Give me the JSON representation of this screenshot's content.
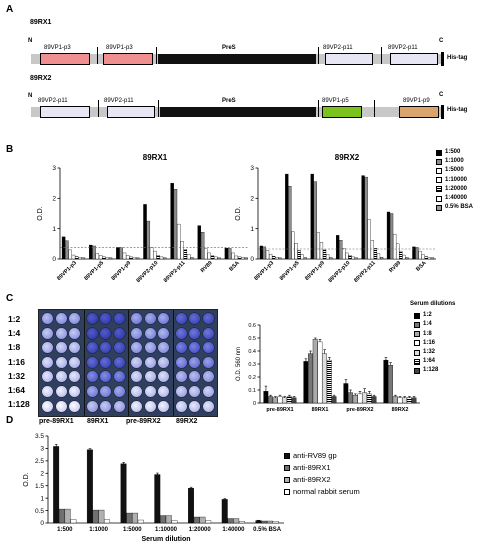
{
  "panelA": {
    "label": "A",
    "constructs": [
      {
        "name": "89RX1",
        "n": "N",
        "c": "C",
        "tag": "His-tag",
        "segments": [
          {
            "label": "89VP1-p3",
            "type": "box",
            "color": "#f08f8f"
          },
          {
            "label": "89VP1-p3",
            "type": "box",
            "color": "#f08f8f"
          },
          {
            "label": "PreS",
            "type": "bar",
            "color": "#111111"
          },
          {
            "label": "89VP2-p11",
            "type": "box",
            "color": "#e6e6f4"
          },
          {
            "label": "89VP2-p11",
            "type": "box",
            "color": "#e6e6f4"
          }
        ]
      },
      {
        "name": "89RX2",
        "n": "N",
        "c": "C",
        "tag": "His-tag",
        "segments": [
          {
            "label": "89VP2-p11",
            "type": "box",
            "color": "#e6e6f4"
          },
          {
            "label": "89VP2-p11",
            "type": "box",
            "color": "#e6e6f4"
          },
          {
            "label": "PreS",
            "type": "bar",
            "color": "#111111"
          },
          {
            "label": "89VP1-p5",
            "type": "box",
            "color": "#7cc21c"
          },
          {
            "label": "89VP1-p9",
            "type": "box",
            "color": "#d9a46d"
          }
        ]
      }
    ]
  },
  "panelB": {
    "label": "B",
    "legend": [
      {
        "label": "1:500",
        "color": "#000000",
        "pattern": "solid"
      },
      {
        "label": "1:1000",
        "color": "#8c8c8c",
        "pattern": "solid"
      },
      {
        "label": "1:5000",
        "color": "#ffffff",
        "pattern": "solid"
      },
      {
        "label": "1:10000",
        "color": "#ffffff",
        "pattern": "solid"
      },
      {
        "label": "1:20000",
        "color": "#000000",
        "pattern": "hstripe"
      },
      {
        "label": "1:40000",
        "color": "#ffffff",
        "pattern": "solid"
      },
      {
        "label": "0.5% BSA",
        "color": "#9a9a9a",
        "pattern": "solid"
      }
    ],
    "chart_data": [
      {
        "type": "bar",
        "title": "89RX1",
        "ylabel": "O.D.",
        "ylim": [
          0,
          3
        ],
        "yticks": [
          "0",
          "1",
          "2",
          "3"
        ],
        "categories": [
          "89VP1-p3",
          "89VP1-p5",
          "89VP1-p9",
          "89VP2-p10",
          "89VP2-p11",
          "RV89",
          "BSA"
        ],
        "series": [
          {
            "name": "1:500",
            "values": [
              0.73,
              0.46,
              0.38,
              1.8,
              2.5,
              1.1,
              0.36
            ]
          },
          {
            "name": "1:1000",
            "values": [
              0.6,
              0.43,
              0.37,
              1.25,
              2.3,
              0.88,
              0.35
            ]
          },
          {
            "name": "1:5000",
            "values": [
              0.3,
              0.18,
              0.2,
              0.38,
              1.15,
              0.34,
              0.2
            ]
          },
          {
            "name": "1:10000",
            "values": [
              0.13,
              0.12,
              0.12,
              0.26,
              0.58,
              0.2,
              0.1
            ]
          },
          {
            "name": "1:20000",
            "values": [
              0.08,
              0.07,
              0.07,
              0.12,
              0.32,
              0.11,
              0.07
            ]
          },
          {
            "name": "1:40000",
            "values": [
              0.05,
              0.04,
              0.04,
              0.07,
              0.15,
              0.07,
              0.05
            ]
          },
          {
            "name": "0.5% BSA",
            "values": [
              0.04,
              0.04,
              0.04,
              0.04,
              0.05,
              0.04,
              0.04
            ]
          }
        ],
        "threshold": 0.38
      },
      {
        "type": "bar",
        "title": "89RX2",
        "ylabel": "O.D.",
        "ylim": [
          0,
          3
        ],
        "yticks": [
          "0",
          "1",
          "2",
          "3"
        ],
        "categories": [
          "89VP1-p3",
          "89VP1-p5",
          "89VP1-p9",
          "89VP2-p10",
          "89VP2-p11",
          "RV89",
          "BSA"
        ],
        "series": [
          {
            "name": "1:500",
            "values": [
              0.43,
              2.8,
              2.8,
              0.78,
              2.75,
              1.55,
              0.4
            ]
          },
          {
            "name": "1:1000",
            "values": [
              0.4,
              2.4,
              2.55,
              0.62,
              2.7,
              1.5,
              0.38
            ]
          },
          {
            "name": "1:5000",
            "values": [
              0.28,
              0.9,
              0.87,
              0.35,
              1.3,
              0.82,
              0.26
            ]
          },
          {
            "name": "1:10000",
            "values": [
              0.16,
              0.52,
              0.55,
              0.2,
              0.62,
              0.5,
              0.14
            ]
          },
          {
            "name": "1:20000",
            "values": [
              0.09,
              0.28,
              0.3,
              0.12,
              0.35,
              0.26,
              0.08
            ]
          },
          {
            "name": "1:40000",
            "values": [
              0.06,
              0.14,
              0.15,
              0.07,
              0.18,
              0.13,
              0.05
            ]
          },
          {
            "name": "0.5% BSA",
            "values": [
              0.04,
              0.05,
              0.05,
              0.04,
              0.06,
              0.05,
              0.04
            ]
          }
        ],
        "threshold": 0.33
      }
    ]
  },
  "panelC": {
    "label": "C",
    "plate_rows": [
      "1:2",
      "1:4",
      "1:8",
      "1:16",
      "1:32",
      "1:64",
      "1:128"
    ],
    "plate_cols": [
      "pre-89RX1",
      "89RX1",
      "pre-89RX2",
      "89RX2"
    ],
    "plate_intensity": [
      [
        0.45,
        0.95,
        0.55,
        0.85
      ],
      [
        0.4,
        0.95,
        0.5,
        0.8
      ],
      [
        0.35,
        0.9,
        0.45,
        0.75
      ],
      [
        0.3,
        0.85,
        0.35,
        0.6
      ],
      [
        0.25,
        0.7,
        0.3,
        0.45
      ],
      [
        0.2,
        0.55,
        0.25,
        0.35
      ],
      [
        0.15,
        0.4,
        0.2,
        0.25
      ]
    ],
    "legend_title": "Serum dilutions",
    "legend": [
      {
        "label": "1:2",
        "color": "#000000",
        "pattern": "solid"
      },
      {
        "label": "1:4",
        "color": "#777777",
        "pattern": "solid"
      },
      {
        "label": "1:8",
        "color": "#aaaaaa",
        "pattern": "solid"
      },
      {
        "label": "1:16",
        "color": "#ffffff",
        "pattern": "solid"
      },
      {
        "label": "1:32",
        "color": "#dddddd",
        "pattern": "solid"
      },
      {
        "label": "1:64",
        "color": "#ffffff",
        "pattern": "hstripe"
      },
      {
        "label": "1:128",
        "color": "#444444",
        "pattern": "solid"
      }
    ],
    "chart_data": {
      "type": "bar",
      "ylabel": "O.D. 560 nm",
      "ylim": [
        0,
        0.6
      ],
      "yticks": [
        "0",
        "0.1",
        "0.2",
        "0.3",
        "0.4",
        "0.5",
        "0.6"
      ],
      "categories": [
        "pre-89RX1",
        "89RX1",
        "pre-89RX2",
        "89RX2"
      ],
      "series": [
        {
          "name": "1:2",
          "values": [
            0.09,
            0.32,
            0.15,
            0.33
          ]
        },
        {
          "name": "1:4",
          "values": [
            0.05,
            0.38,
            0.08,
            0.29
          ]
        },
        {
          "name": "1:8",
          "values": [
            0.04,
            0.49,
            0.06,
            0.05
          ]
        },
        {
          "name": "1:16",
          "values": [
            0.05,
            0.47,
            0.07,
            0.04
          ]
        },
        {
          "name": "1:32",
          "values": [
            0.04,
            0.38,
            0.08,
            0.04
          ]
        },
        {
          "name": "1:64",
          "values": [
            0.05,
            0.33,
            0.07,
            0.04
          ]
        },
        {
          "name": "1:128",
          "values": [
            0.04,
            0.05,
            0.05,
            0.04
          ]
        }
      ],
      "errors": [
        [
          0.04,
          0.02,
          0.03,
          0.02
        ],
        [
          0.01,
          0.02,
          0.02,
          0.02
        ],
        [
          0.01,
          0.01,
          0.01,
          0.01
        ],
        [
          0.01,
          0.02,
          0.02,
          0.01
        ],
        [
          0.01,
          0.03,
          0.03,
          0.01
        ],
        [
          0.01,
          0.02,
          0.02,
          0.01
        ],
        [
          0.01,
          0.01,
          0.01,
          0.01
        ]
      ]
    }
  },
  "panelD": {
    "label": "D",
    "legend": [
      {
        "label": "anti-RV89 gp",
        "color": "#111111",
        "pattern": "solid"
      },
      {
        "label": "anti-89RX1",
        "color": "#707070",
        "pattern": "solid"
      },
      {
        "label": "anti-89RX2",
        "color": "#b0b0b0",
        "pattern": "solid"
      },
      {
        "label": "normal rabbit serum",
        "color": "#ffffff",
        "pattern": "solid"
      }
    ],
    "chart_data": {
      "type": "bar",
      "ylabel": "O.D.",
      "xlabel": "Serum dilution",
      "ylim": [
        0,
        3.5
      ],
      "yticks": [
        "0",
        "0.5",
        "1",
        "1.5",
        "2",
        "2.5",
        "3",
        "3.5"
      ],
      "categories": [
        "1:500",
        "1:1000",
        "1:5000",
        "1:10000",
        "1:20000",
        "1:40000",
        "0.5% BSA"
      ],
      "series": [
        {
          "name": "anti-RV89 gp",
          "values": [
            3.08,
            2.95,
            2.38,
            1.95,
            1.4,
            0.95,
            0.1
          ]
        },
        {
          "name": "anti-89RX1",
          "values": [
            0.56,
            0.52,
            0.4,
            0.3,
            0.24,
            0.18,
            0.08
          ]
        },
        {
          "name": "anti-89RX2",
          "values": [
            0.56,
            0.52,
            0.4,
            0.3,
            0.24,
            0.18,
            0.08
          ]
        },
        {
          "name": "normal rabbit serum",
          "values": [
            0.14,
            0.13,
            0.12,
            0.1,
            0.09,
            0.07,
            0.07
          ]
        }
      ],
      "errors": [
        0.08,
        0.04,
        0.06,
        0.06,
        0.04,
        0.03,
        0.01
      ]
    }
  }
}
